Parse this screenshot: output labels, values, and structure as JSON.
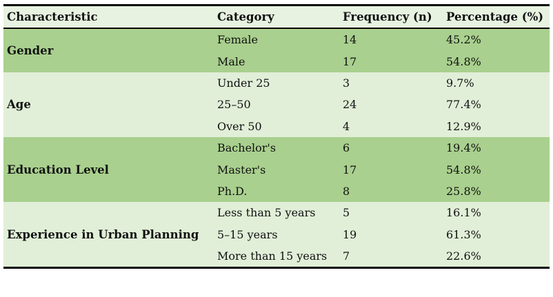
{
  "chart_data": {
    "type": "table",
    "title": "",
    "columns": [
      "Characteristic",
      "Category",
      "Frequency (n)",
      "Percentage (%)"
    ],
    "groups": [
      {
        "characteristic": "Gender",
        "rows": [
          {
            "category": "Female",
            "frequency": "14",
            "percentage": "45.2%"
          },
          {
            "category": "Male",
            "frequency": "17",
            "percentage": "54.8%"
          }
        ]
      },
      {
        "characteristic": "Age",
        "rows": [
          {
            "category": "Under 25",
            "frequency": "3",
            "percentage": "9.7%"
          },
          {
            "category": "25–50",
            "frequency": "24",
            "percentage": "77.4%"
          },
          {
            "category": "Over 50",
            "frequency": "4",
            "percentage": "12.9%"
          }
        ]
      },
      {
        "characteristic": "Education Level",
        "rows": [
          {
            "category": "Bachelor's",
            "frequency": "6",
            "percentage": "19.4%"
          },
          {
            "category": "Master's",
            "frequency": "17",
            "percentage": "54.8%"
          },
          {
            "category": "Ph.D.",
            "frequency": "8",
            "percentage": "25.8%"
          }
        ]
      },
      {
        "characteristic": "Experience in Urban Planning",
        "rows": [
          {
            "category": "Less than 5 years",
            "frequency": "5",
            "percentage": "16.1%"
          },
          {
            "category": "5–15 years",
            "frequency": "19",
            "percentage": "61.3%"
          },
          {
            "category": "More than 15 years",
            "frequency": "7",
            "percentage": "22.6%"
          }
        ]
      }
    ],
    "colors": {
      "band_dark": "#a9d08e",
      "band_light": "#e1efd8",
      "header_bg": "#e7f2e0",
      "rule": "#000000"
    },
    "layout_hints": {
      "banding": "groups alternate dark/light green",
      "rules": "thick black top rule, thin black rule under header, thick black bottom rule"
    }
  }
}
